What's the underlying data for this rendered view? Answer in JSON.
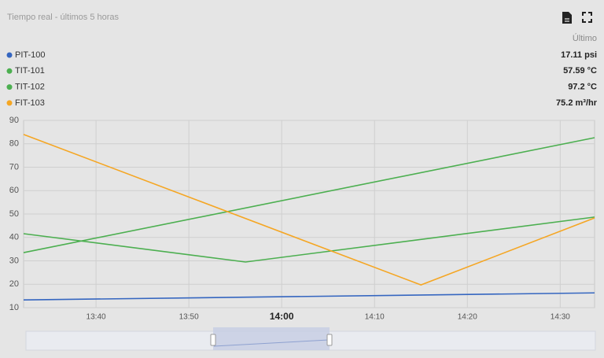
{
  "chart_data": {
    "type": "line",
    "title": "Tiempo real - últimos 5 horas",
    "last_header": "Último",
    "series": [
      {
        "name": "PIT-100",
        "color": "#3566c0",
        "last": "17.11 psi",
        "x": [
          812.2,
          873.7
        ],
        "values": [
          13.3,
          16.3
        ]
      },
      {
        "name": "TIT-101",
        "color": "#4caf50",
        "last": "57.59 °C",
        "x": [
          812.2,
          873.7
        ],
        "values": [
          33.5,
          82.6
        ]
      },
      {
        "name": "TIT-102",
        "color": "#4caf50",
        "last": "97.2 °C",
        "x": [
          812.2,
          836.1,
          873.7
        ],
        "values": [
          41.6,
          29.5,
          48.7
        ]
      },
      {
        "name": "FIT-103",
        "color": "#f5a623",
        "last": "75.2 m³/hr",
        "x": [
          812.2,
          855,
          873.7
        ],
        "values": [
          84,
          19.7,
          48.3
        ]
      }
    ],
    "xlim": [
      812.2,
      873.7
    ],
    "xticks": [
      {
        "value": 820,
        "label": "13:40"
      },
      {
        "value": 830,
        "label": "13:50"
      },
      {
        "value": 840,
        "label": "14:00"
      },
      {
        "value": 850,
        "label": "14:10"
      },
      {
        "value": 860,
        "label": "14:20"
      },
      {
        "value": 870,
        "label": "14:30"
      }
    ],
    "ylim": [
      10,
      90
    ],
    "yticks": [
      10,
      20,
      30,
      40,
      50,
      60,
      70,
      80,
      90
    ],
    "grid": true
  }
}
